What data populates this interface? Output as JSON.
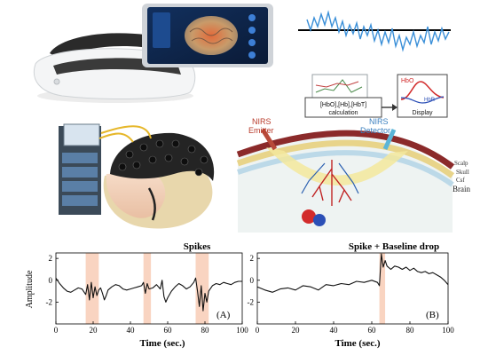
{
  "diagram": {
    "labels": {
      "nirs_emitter_l1": "NIRS",
      "nirs_emitter_l2": "Emitter",
      "nirs_detector_l1": "NIRS",
      "nirs_detector_l2": "Detector",
      "scalp": "Scalp",
      "skull": "Skull",
      "csf": "Csf",
      "brain": "Brain",
      "calc_l1": "[HbO],[Hb],[HbT]",
      "calc_l2": "calculation",
      "display": "Display",
      "hbo": "HbO",
      "hbr": "HbR"
    }
  },
  "chart_data": [
    {
      "type": "line",
      "title": "Spikes",
      "panel": "(A)",
      "xlabel": "Time (sec.)",
      "ylabel": "Amplitude",
      "xlim": [
        0,
        100
      ],
      "ylim": [
        -4,
        2.5
      ],
      "xticks": [
        0,
        20,
        40,
        60,
        80,
        100
      ],
      "yticks": [
        2,
        0,
        -2
      ],
      "x": [
        0,
        2,
        4,
        6,
        8,
        10,
        12,
        14,
        16,
        17,
        18,
        19,
        20,
        21,
        22,
        23,
        24,
        25,
        26,
        27,
        28,
        30,
        32,
        34,
        36,
        38,
        40,
        42,
        44,
        46,
        47,
        48,
        49,
        50,
        52,
        54,
        56,
        57,
        58,
        59,
        60,
        62,
        64,
        66,
        68,
        70,
        72,
        74,
        75,
        76,
        77,
        78,
        79,
        80,
        81,
        82,
        84,
        86,
        88,
        90,
        92,
        94,
        96,
        98,
        100
      ],
      "values": [
        0.2,
        -0.3,
        -0.7,
        -1.0,
        -1.1,
        -0.9,
        -0.7,
        -0.8,
        -1.3,
        -0.4,
        -1.8,
        -0.2,
        -1.6,
        -0.6,
        -1.4,
        -0.9,
        -0.7,
        -1.2,
        -1.8,
        -1.4,
        -0.9,
        -0.6,
        -0.4,
        -0.5,
        -0.8,
        -0.9,
        -0.8,
        -0.7,
        -0.6,
        -0.5,
        -0.2,
        -1.2,
        -0.3,
        -0.8,
        -0.7,
        -0.4,
        -0.8,
        0.0,
        -1.5,
        -2.0,
        -1.6,
        -1.0,
        -0.6,
        -0.3,
        -0.5,
        -0.8,
        -0.6,
        -0.2,
        0.2,
        -1.0,
        -2.4,
        -0.5,
        -2.8,
        -1.2,
        -2.0,
        -1.0,
        -0.5,
        -0.3,
        -0.4,
        -0.2,
        -0.3,
        -0.4,
        -0.2,
        -0.1,
        -0.1
      ],
      "highlight_ranges": [
        [
          16,
          23
        ],
        [
          47,
          51
        ],
        [
          75,
          82
        ]
      ]
    },
    {
      "type": "line",
      "title": "Spike + Baseline drop",
      "panel": "(B)",
      "xlabel": "Time (sec.)",
      "ylabel": "",
      "xlim": [
        0,
        100
      ],
      "ylim": [
        -4,
        2.5
      ],
      "xticks": [
        0,
        20,
        40,
        60,
        80,
        100
      ],
      "yticks": [
        2,
        0,
        -2
      ],
      "x": [
        0,
        4,
        8,
        12,
        16,
        20,
        24,
        28,
        32,
        36,
        40,
        44,
        48,
        52,
        56,
        60,
        63,
        64,
        65,
        66,
        67,
        68,
        70,
        72,
        74,
        76,
        78,
        80,
        82,
        84,
        86,
        88,
        90,
        92,
        94,
        96,
        98,
        100
      ],
      "values": [
        -0.6,
        -0.9,
        -1.1,
        -0.8,
        -0.7,
        -0.9,
        -0.5,
        -0.6,
        -0.9,
        -0.4,
        -0.5,
        -0.3,
        -0.4,
        -0.1,
        -0.2,
        0.0,
        -0.2,
        -0.5,
        2.4,
        1.2,
        1.8,
        1.3,
        1.0,
        1.3,
        1.2,
        1.0,
        1.2,
        0.9,
        1.1,
        0.8,
        0.7,
        0.8,
        0.6,
        0.7,
        0.5,
        0.3,
        0.0,
        -0.4
      ],
      "highlight_ranges": [
        [
          64,
          67
        ]
      ]
    }
  ]
}
